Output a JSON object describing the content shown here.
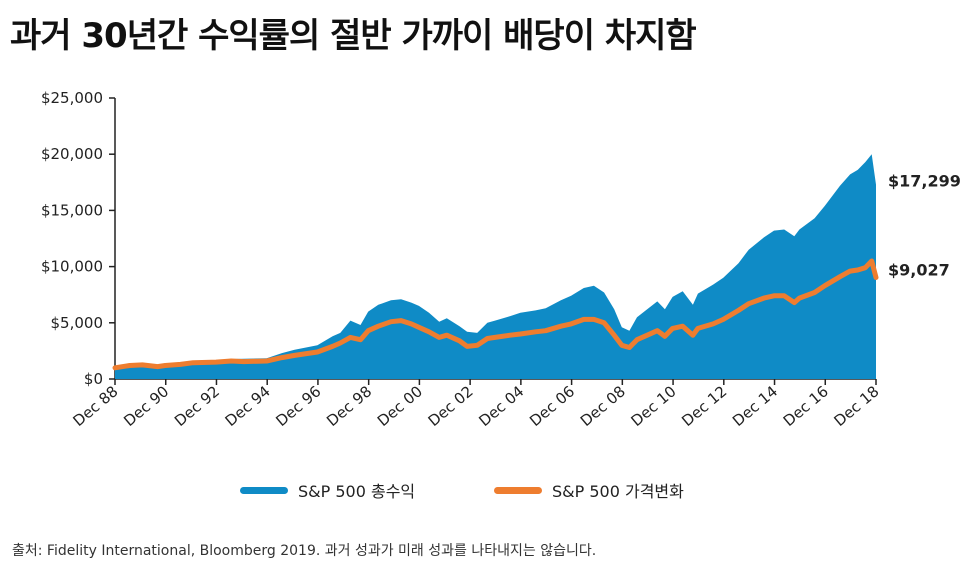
{
  "title": "과거 30년간 수익률의 절반 가까이 배당이 차지함",
  "source": "출처:  Fidelity International, Bloomberg 2019. 과거 성과가 미래 성과를 나타내지는 않습니다.",
  "colors": {
    "total": "#0f8bc6",
    "price": "#ee7d2f",
    "axis": "#222222"
  },
  "chart_data": {
    "type": "area",
    "title": "과거 30년간 수익률의 절반 가까이 배당이 차지함",
    "xlabel": "",
    "ylabel": "",
    "x_range": [
      1988.92,
      2018.92
    ],
    "ylim": [
      0,
      25000
    ],
    "y_ticks": [
      0,
      5000,
      10000,
      15000,
      20000,
      25000
    ],
    "y_tick_labels": [
      "$0",
      "$5,000",
      "$10,000",
      "$15,000",
      "$20,000",
      "$25,000"
    ],
    "x_tick_labels": [
      "Dec 88",
      "Dec 90",
      "Dec 92",
      "Dec 94",
      "Dec 96",
      "Dec 98",
      "Dec 00",
      "Dec 02",
      "Dec 04",
      "Dec 06",
      "Dec 08",
      "Dec 10",
      "Dec 12",
      "Dec 14",
      "Dec 16",
      "Dec 18"
    ],
    "x_ticks": [
      1988.92,
      1990.92,
      1992.92,
      1994.92,
      1996.92,
      1998.92,
      2000.92,
      2002.92,
      2004.92,
      2006.92,
      2008.92,
      2010.92,
      2012.92,
      2014.92,
      2016.92,
      2018.92
    ],
    "grid": false,
    "legend": "bottom",
    "series": [
      {
        "name": "S&P 500 총수익",
        "type": "area",
        "end_label": "$17,299",
        "x": [
          1988.92,
          1989.5,
          1990.0,
          1990.6,
          1990.9,
          1991.5,
          1992.0,
          1992.9,
          1993.5,
          1994.0,
          1994.9,
          1995.5,
          1996.0,
          1996.9,
          1997.5,
          1997.8,
          1998.2,
          1998.6,
          1998.9,
          1999.3,
          1999.8,
          2000.2,
          2000.6,
          2000.9,
          2001.3,
          2001.7,
          2002.0,
          2002.5,
          2002.8,
          2003.2,
          2003.6,
          2003.9,
          2004.5,
          2004.9,
          2005.5,
          2005.9,
          2006.5,
          2006.9,
          2007.4,
          2007.8,
          2008.2,
          2008.6,
          2008.9,
          2009.2,
          2009.5,
          2009.9,
          2010.3,
          2010.6,
          2010.9,
          2011.3,
          2011.7,
          2011.9,
          2012.5,
          2012.9,
          2013.5,
          2013.9,
          2014.5,
          2014.9,
          2015.3,
          2015.7,
          2015.9,
          2016.5,
          2016.9,
          2017.5,
          2017.9,
          2018.2,
          2018.5,
          2018.75,
          2018.92
        ],
        "values": [
          1000,
          1250,
          1350,
          1200,
          1300,
          1450,
          1600,
          1650,
          1780,
          1800,
          1850,
          2300,
          2600,
          3000,
          3800,
          4100,
          5200,
          4800,
          6000,
          6600,
          7000,
          7100,
          6800,
          6500,
          5900,
          5100,
          5400,
          4700,
          4200,
          4100,
          5000,
          5200,
          5600,
          5900,
          6100,
          6300,
          7000,
          7400,
          8100,
          8300,
          7700,
          6200,
          4600,
          4300,
          5500,
          6200,
          6900,
          6200,
          7300,
          7800,
          6600,
          7600,
          8400,
          9000,
          10300,
          11500,
          12600,
          13200,
          13300,
          12700,
          13300,
          14300,
          15400,
          17200,
          18200,
          18600,
          19300,
          20000,
          17299
        ]
      },
      {
        "name": "S&P 500 가격변화",
        "type": "line",
        "end_label": "$9,027",
        "x": [
          1988.92,
          1989.5,
          1990.0,
          1990.6,
          1990.9,
          1991.5,
          1992.0,
          1992.9,
          1993.5,
          1994.0,
          1994.9,
          1995.5,
          1996.0,
          1996.9,
          1997.5,
          1997.8,
          1998.2,
          1998.6,
          1998.9,
          1999.3,
          1999.8,
          2000.2,
          2000.6,
          2000.9,
          2001.3,
          2001.7,
          2002.0,
          2002.5,
          2002.8,
          2003.2,
          2003.6,
          2003.9,
          2004.5,
          2004.9,
          2005.5,
          2005.9,
          2006.5,
          2006.9,
          2007.4,
          2007.8,
          2008.2,
          2008.6,
          2008.9,
          2009.2,
          2009.5,
          2009.9,
          2010.3,
          2010.6,
          2010.9,
          2011.3,
          2011.7,
          2011.9,
          2012.5,
          2012.9,
          2013.5,
          2013.9,
          2014.5,
          2014.9,
          2015.3,
          2015.7,
          2015.9,
          2016.5,
          2016.9,
          2017.5,
          2017.9,
          2018.2,
          2018.5,
          2018.75,
          2018.92
        ],
        "values": [
          1000,
          1200,
          1250,
          1100,
          1200,
          1300,
          1450,
          1500,
          1600,
          1550,
          1600,
          1900,
          2100,
          2400,
          2900,
          3200,
          3700,
          3500,
          4300,
          4700,
          5100,
          5200,
          4900,
          4600,
          4200,
          3700,
          3900,
          3400,
          2900,
          3000,
          3600,
          3700,
          3900,
          4000,
          4200,
          4300,
          4700,
          4900,
          5300,
          5300,
          5000,
          3900,
          3000,
          2800,
          3500,
          3900,
          4300,
          3800,
          4500,
          4700,
          3900,
          4500,
          4900,
          5300,
          6100,
          6700,
          7200,
          7400,
          7400,
          6800,
          7200,
          7700,
          8300,
          9100,
          9600,
          9700,
          9900,
          10500,
          9027
        ]
      }
    ]
  }
}
